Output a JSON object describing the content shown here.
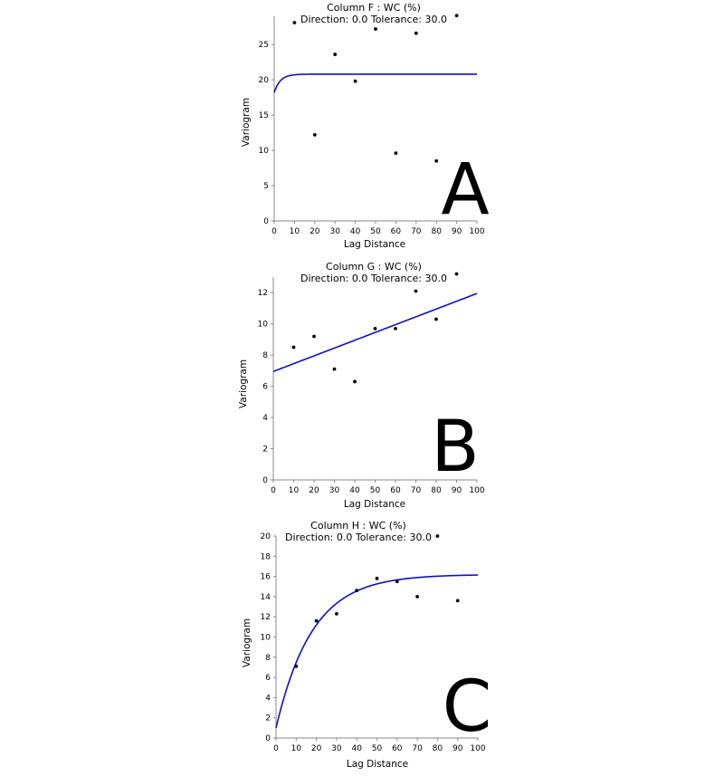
{
  "chart_data": [
    {
      "type": "scatter",
      "title": "Column F : WC (%)",
      "subtitle": "Direction: 0.0    Tolerance: 30.0",
      "xlabel": "Lag Distance",
      "ylabel": "Variogram",
      "panel_label": "A",
      "xlim": [
        0,
        100
      ],
      "ylim": [
        0,
        29
      ],
      "xticks": [
        0,
        10,
        20,
        30,
        40,
        50,
        60,
        70,
        80,
        90,
        100
      ],
      "yticks": [
        0,
        5,
        10,
        15,
        20,
        25
      ],
      "grid": false,
      "points": [
        {
          "x": 10,
          "y": 28.1
        },
        {
          "x": 20,
          "y": 12.2
        },
        {
          "x": 30,
          "y": 23.6
        },
        {
          "x": 40,
          "y": 19.8
        },
        {
          "x": 50,
          "y": 27.2
        },
        {
          "x": 60,
          "y": 9.6
        },
        {
          "x": 70,
          "y": 26.6
        },
        {
          "x": 80,
          "y": 8.5
        },
        {
          "x": 90,
          "y": 29.1
        }
      ],
      "model": {
        "kind": "exponential",
        "nugget": 18.2,
        "sill": 20.8,
        "range": 3,
        "color": "#1010c8"
      },
      "point_color": "#000000"
    },
    {
      "type": "scatter",
      "title": "Column G : WC (%)",
      "subtitle": "Direction: 0.0    Tolerance: 30.0",
      "xlabel": "Lag Distance",
      "ylabel": "Variogram",
      "panel_label": "B",
      "xlim": [
        0,
        100
      ],
      "ylim": [
        0,
        13
      ],
      "xticks": [
        0,
        10,
        20,
        30,
        40,
        50,
        60,
        70,
        80,
        90,
        100
      ],
      "yticks": [
        0,
        2,
        4,
        6,
        8,
        10,
        12
      ],
      "grid": false,
      "points": [
        {
          "x": 10,
          "y": 8.5
        },
        {
          "x": 20,
          "y": 9.2
        },
        {
          "x": 30,
          "y": 7.1
        },
        {
          "x": 40,
          "y": 6.3
        },
        {
          "x": 50,
          "y": 9.7
        },
        {
          "x": 60,
          "y": 9.7
        },
        {
          "x": 70,
          "y": 12.1
        },
        {
          "x": 80,
          "y": 10.3
        },
        {
          "x": 90,
          "y": 13.2
        }
      ],
      "model": {
        "kind": "linear",
        "intercept": 6.95,
        "slope": 0.05,
        "color": "#1010c8"
      },
      "point_color": "#000000"
    },
    {
      "type": "scatter",
      "title": "Column H : WC (%)",
      "subtitle": "Direction: 0.0    Tolerance: 30.0",
      "xlabel": "Lag Distance",
      "ylabel": "Variogram",
      "panel_label": "C",
      "xlim": [
        0,
        100
      ],
      "ylim": [
        0,
        20
      ],
      "xticks": [
        0,
        10,
        20,
        30,
        40,
        50,
        60,
        70,
        80,
        90,
        100
      ],
      "yticks": [
        0,
        2,
        4,
        6,
        8,
        10,
        12,
        14,
        16,
        18,
        20
      ],
      "grid": false,
      "points": [
        {
          "x": 10,
          "y": 7.1
        },
        {
          "x": 20,
          "y": 11.6
        },
        {
          "x": 30,
          "y": 12.3
        },
        {
          "x": 40,
          "y": 14.6
        },
        {
          "x": 50,
          "y": 15.8
        },
        {
          "x": 60,
          "y": 15.5
        },
        {
          "x": 70,
          "y": 14.0
        },
        {
          "x": 80,
          "y": 20.0
        },
        {
          "x": 90,
          "y": 13.6
        }
      ],
      "model": {
        "kind": "exponential",
        "nugget": 1.0,
        "sill": 16.2,
        "range": 18,
        "color": "#1010c8"
      },
      "point_color": "#000000"
    }
  ]
}
